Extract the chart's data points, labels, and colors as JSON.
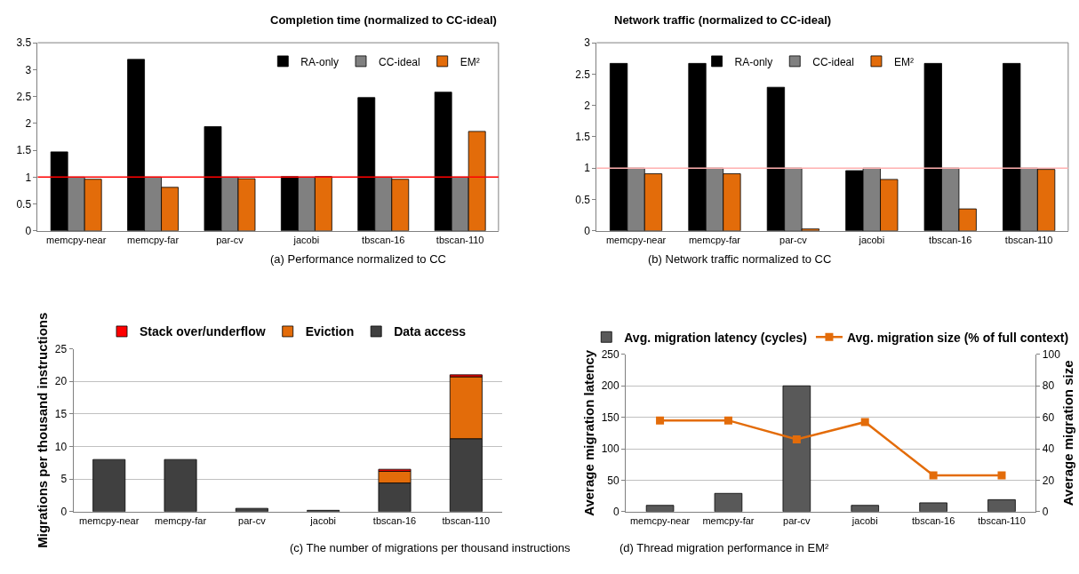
{
  "chart_data": [
    {
      "type": "bar",
      "title": "Completion time (normalized to CC-ideal)",
      "categories": [
        "memcpy-near",
        "memcpy-far",
        "par-cv",
        "jacobi",
        "tbscan-16",
        "tbscan-110"
      ],
      "series": [
        {
          "name": "RA-only",
          "color": "#000000",
          "values": [
            1.47,
            3.19,
            1.94,
            1.01,
            2.48,
            2.58
          ]
        },
        {
          "name": "CC-ideal",
          "color": "#808080",
          "values": [
            1,
            1,
            1,
            1,
            1,
            1
          ]
        },
        {
          "name": "EM²",
          "color": "#e36c0a",
          "values": [
            0.96,
            0.81,
            0.97,
            1.01,
            0.96,
            1.85
          ]
        }
      ],
      "ylim": [
        0,
        3.5
      ],
      "yticks": [
        0,
        0.5,
        1,
        1.5,
        2,
        2.5,
        3,
        3.5
      ],
      "grid": false,
      "legend": "top right",
      "ref_lines": [
        {
          "axis": "y",
          "value": 1,
          "color": "#ff0000"
        }
      ],
      "annotations": [
        "(a) Performance normalized to CC"
      ]
    },
    {
      "type": "bar",
      "title": "Network traffic (normalized to CC-ideal)",
      "categories": [
        "memcpy-near",
        "memcpy-far",
        "par-cv",
        "jacobi",
        "tbscan-16",
        "tbscan-110"
      ],
      "series": [
        {
          "name": "RA-only",
          "color": "#000000",
          "values": [
            2.67,
            2.67,
            2.29,
            0.96,
            2.67,
            2.67
          ]
        },
        {
          "name": "CC-ideal",
          "color": "#808080",
          "values": [
            1,
            1,
            1,
            1,
            1,
            1
          ]
        },
        {
          "name": "EM²",
          "color": "#e36c0a",
          "values": [
            0.91,
            0.91,
            0.03,
            0.82,
            0.35,
            0.98
          ]
        }
      ],
      "ylim": [
        0,
        3
      ],
      "yticks": [
        0,
        0.5,
        1,
        1.5,
        2,
        2.5,
        3
      ],
      "grid": false,
      "legend": "top",
      "ref_lines": [
        {
          "axis": "y",
          "value": 1,
          "color": "#ffb0b0"
        }
      ],
      "annotations": [
        "(b) Network traffic normalized to CC"
      ]
    },
    {
      "type": "bar",
      "stacked": true,
      "ylabel": "Migrations per thousand instructions",
      "categories": [
        "memcpy-near",
        "memcpy-far",
        "par-cv",
        "jacobi",
        "tbscan-16",
        "tbscan-110"
      ],
      "series": [
        {
          "name": "Data access",
          "color": "#404040",
          "values": [
            8,
            8,
            0.5,
            0.2,
            4.4,
            11.2
          ]
        },
        {
          "name": "Eviction",
          "color": "#e36c0a",
          "values": [
            null,
            null,
            null,
            null,
            1.8,
            9.5
          ]
        },
        {
          "name": "Stack over/underflow",
          "color": "#ff0000",
          "values": [
            null,
            null,
            null,
            null,
            0.3,
            0.3
          ]
        }
      ],
      "ylim": [
        0,
        25
      ],
      "yticks": [
        0,
        5,
        10,
        15,
        20,
        25
      ],
      "grid": "y",
      "legend": "top",
      "annotations": [
        "(c) The number of migrations per thousand instructions"
      ]
    },
    {
      "type": "bar",
      "ylabel": "Average migration latency",
      "y2label": "Average migration size",
      "categories": [
        "memcpy-near",
        "memcpy-far",
        "par-cv",
        "jacobi",
        "tbscan-16",
        "tbscan-110"
      ],
      "series": [
        {
          "name": "Avg. migration latency (cycles)",
          "color": "#595959",
          "values": [
            10,
            29,
            200,
            10,
            14,
            19
          ]
        },
        {
          "name": "Avg. migration size (% of full context)",
          "type": "line",
          "axis": "y2",
          "marker": "square",
          "color": "#e36c0a",
          "values": [
            58,
            58,
            46,
            57,
            23,
            23
          ]
        }
      ],
      "ylim": [
        0,
        250
      ],
      "yticks": [
        0,
        50,
        100,
        150,
        200,
        250
      ],
      "y2lim": [
        0,
        100
      ],
      "y2ticks": [
        0,
        20,
        40,
        60,
        80,
        100
      ],
      "grid": "y",
      "legend": "top",
      "annotations": [
        "(d) Thread migration performance in EM²"
      ]
    }
  ]
}
